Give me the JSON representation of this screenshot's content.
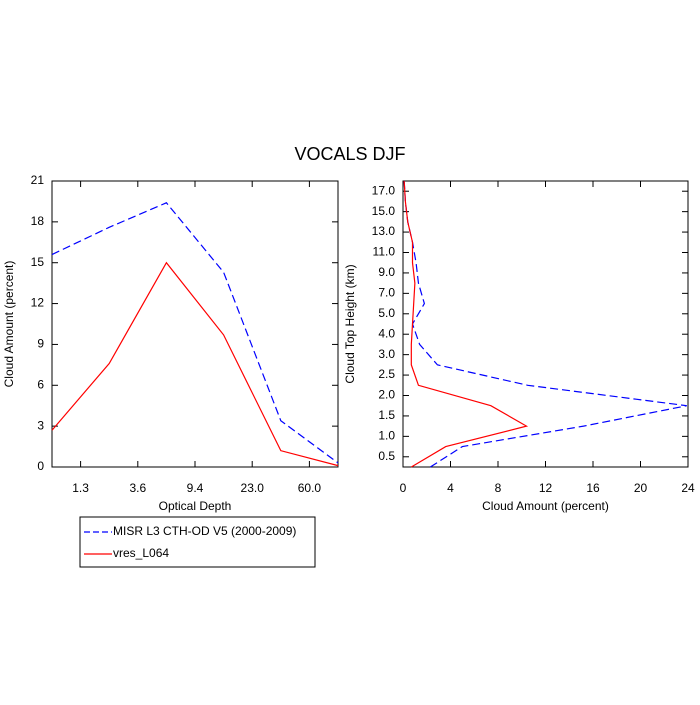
{
  "title": "VOCALS DJF",
  "chart_data": [
    {
      "type": "line",
      "xlabel": "Optical Depth",
      "ylabel": "Cloud Amount (percent)",
      "x": [
        0,
        1,
        2,
        3,
        4,
        5
      ],
      "xlim": [
        0,
        5
      ],
      "xticks": [
        {
          "value": 0.5,
          "label": "1.3"
        },
        {
          "value": 1.5,
          "label": "3.6"
        },
        {
          "value": 2.5,
          "label": "9.4"
        },
        {
          "value": 3.5,
          "label": "23.0"
        },
        {
          "value": 4.5,
          "label": "60.0"
        }
      ],
      "ylim": [
        0,
        21
      ],
      "yticks": [
        0,
        3,
        6,
        9,
        12,
        15,
        18,
        21
      ],
      "series": [
        {
          "name": "MISR L3 CTH-OD V5 (2000-2009)",
          "color": "#0000ff",
          "dash": true,
          "values": [
            15.6,
            17.6,
            19.4,
            14.3,
            3.4,
            0.3
          ]
        },
        {
          "name": "vres_L064",
          "color": "#ff0000",
          "dash": false,
          "values": [
            2.7,
            7.6,
            15.0,
            9.7,
            1.2,
            0.1
          ]
        }
      ]
    },
    {
      "type": "profile",
      "xlabel": "Cloud Amount (percent)",
      "ylabel": "Cloud Top Height (km)",
      "xlim": [
        0,
        24
      ],
      "xticks": [
        0,
        4,
        8,
        12,
        16,
        20,
        24
      ],
      "y": [
        0,
        1,
        2,
        3,
        4,
        5,
        6,
        7,
        8,
        9,
        10,
        11,
        12,
        13,
        14
      ],
      "ylim": [
        0,
        14
      ],
      "yticks": [
        {
          "value": 0.5,
          "label": "0.5"
        },
        {
          "value": 1.5,
          "label": "1.0"
        },
        {
          "value": 2.5,
          "label": "1.5"
        },
        {
          "value": 3.5,
          "label": "2.0"
        },
        {
          "value": 4.5,
          "label": "2.5"
        },
        {
          "value": 5.5,
          "label": "3.0"
        },
        {
          "value": 6.5,
          "label": "4.0"
        },
        {
          "value": 7.5,
          "label": "5.0"
        },
        {
          "value": 8.5,
          "label": "7.0"
        },
        {
          "value": 9.5,
          "label": "9.0"
        },
        {
          "value": 10.5,
          "label": "11.0"
        },
        {
          "value": 11.5,
          "label": "13.0"
        },
        {
          "value": 12.5,
          "label": "15.0"
        },
        {
          "value": 13.5,
          "label": "17.0"
        }
      ],
      "series": [
        {
          "color": "#0000ff",
          "dash": true,
          "values": [
            2.3,
            5.0,
            15.2,
            23.9,
            10.5,
            2.9,
            1.4,
            0.8,
            1.8,
            1.3,
            1.1,
            0.8,
            0.4,
            0.2,
            0.1
          ]
        },
        {
          "color": "#ff0000",
          "dash": false,
          "values": [
            0.7,
            3.6,
            10.4,
            7.4,
            1.3,
            0.7,
            0.7,
            0.8,
            0.9,
            1.0,
            0.8,
            0.8,
            0.4,
            0.2,
            0.1
          ]
        }
      ]
    }
  ]
}
